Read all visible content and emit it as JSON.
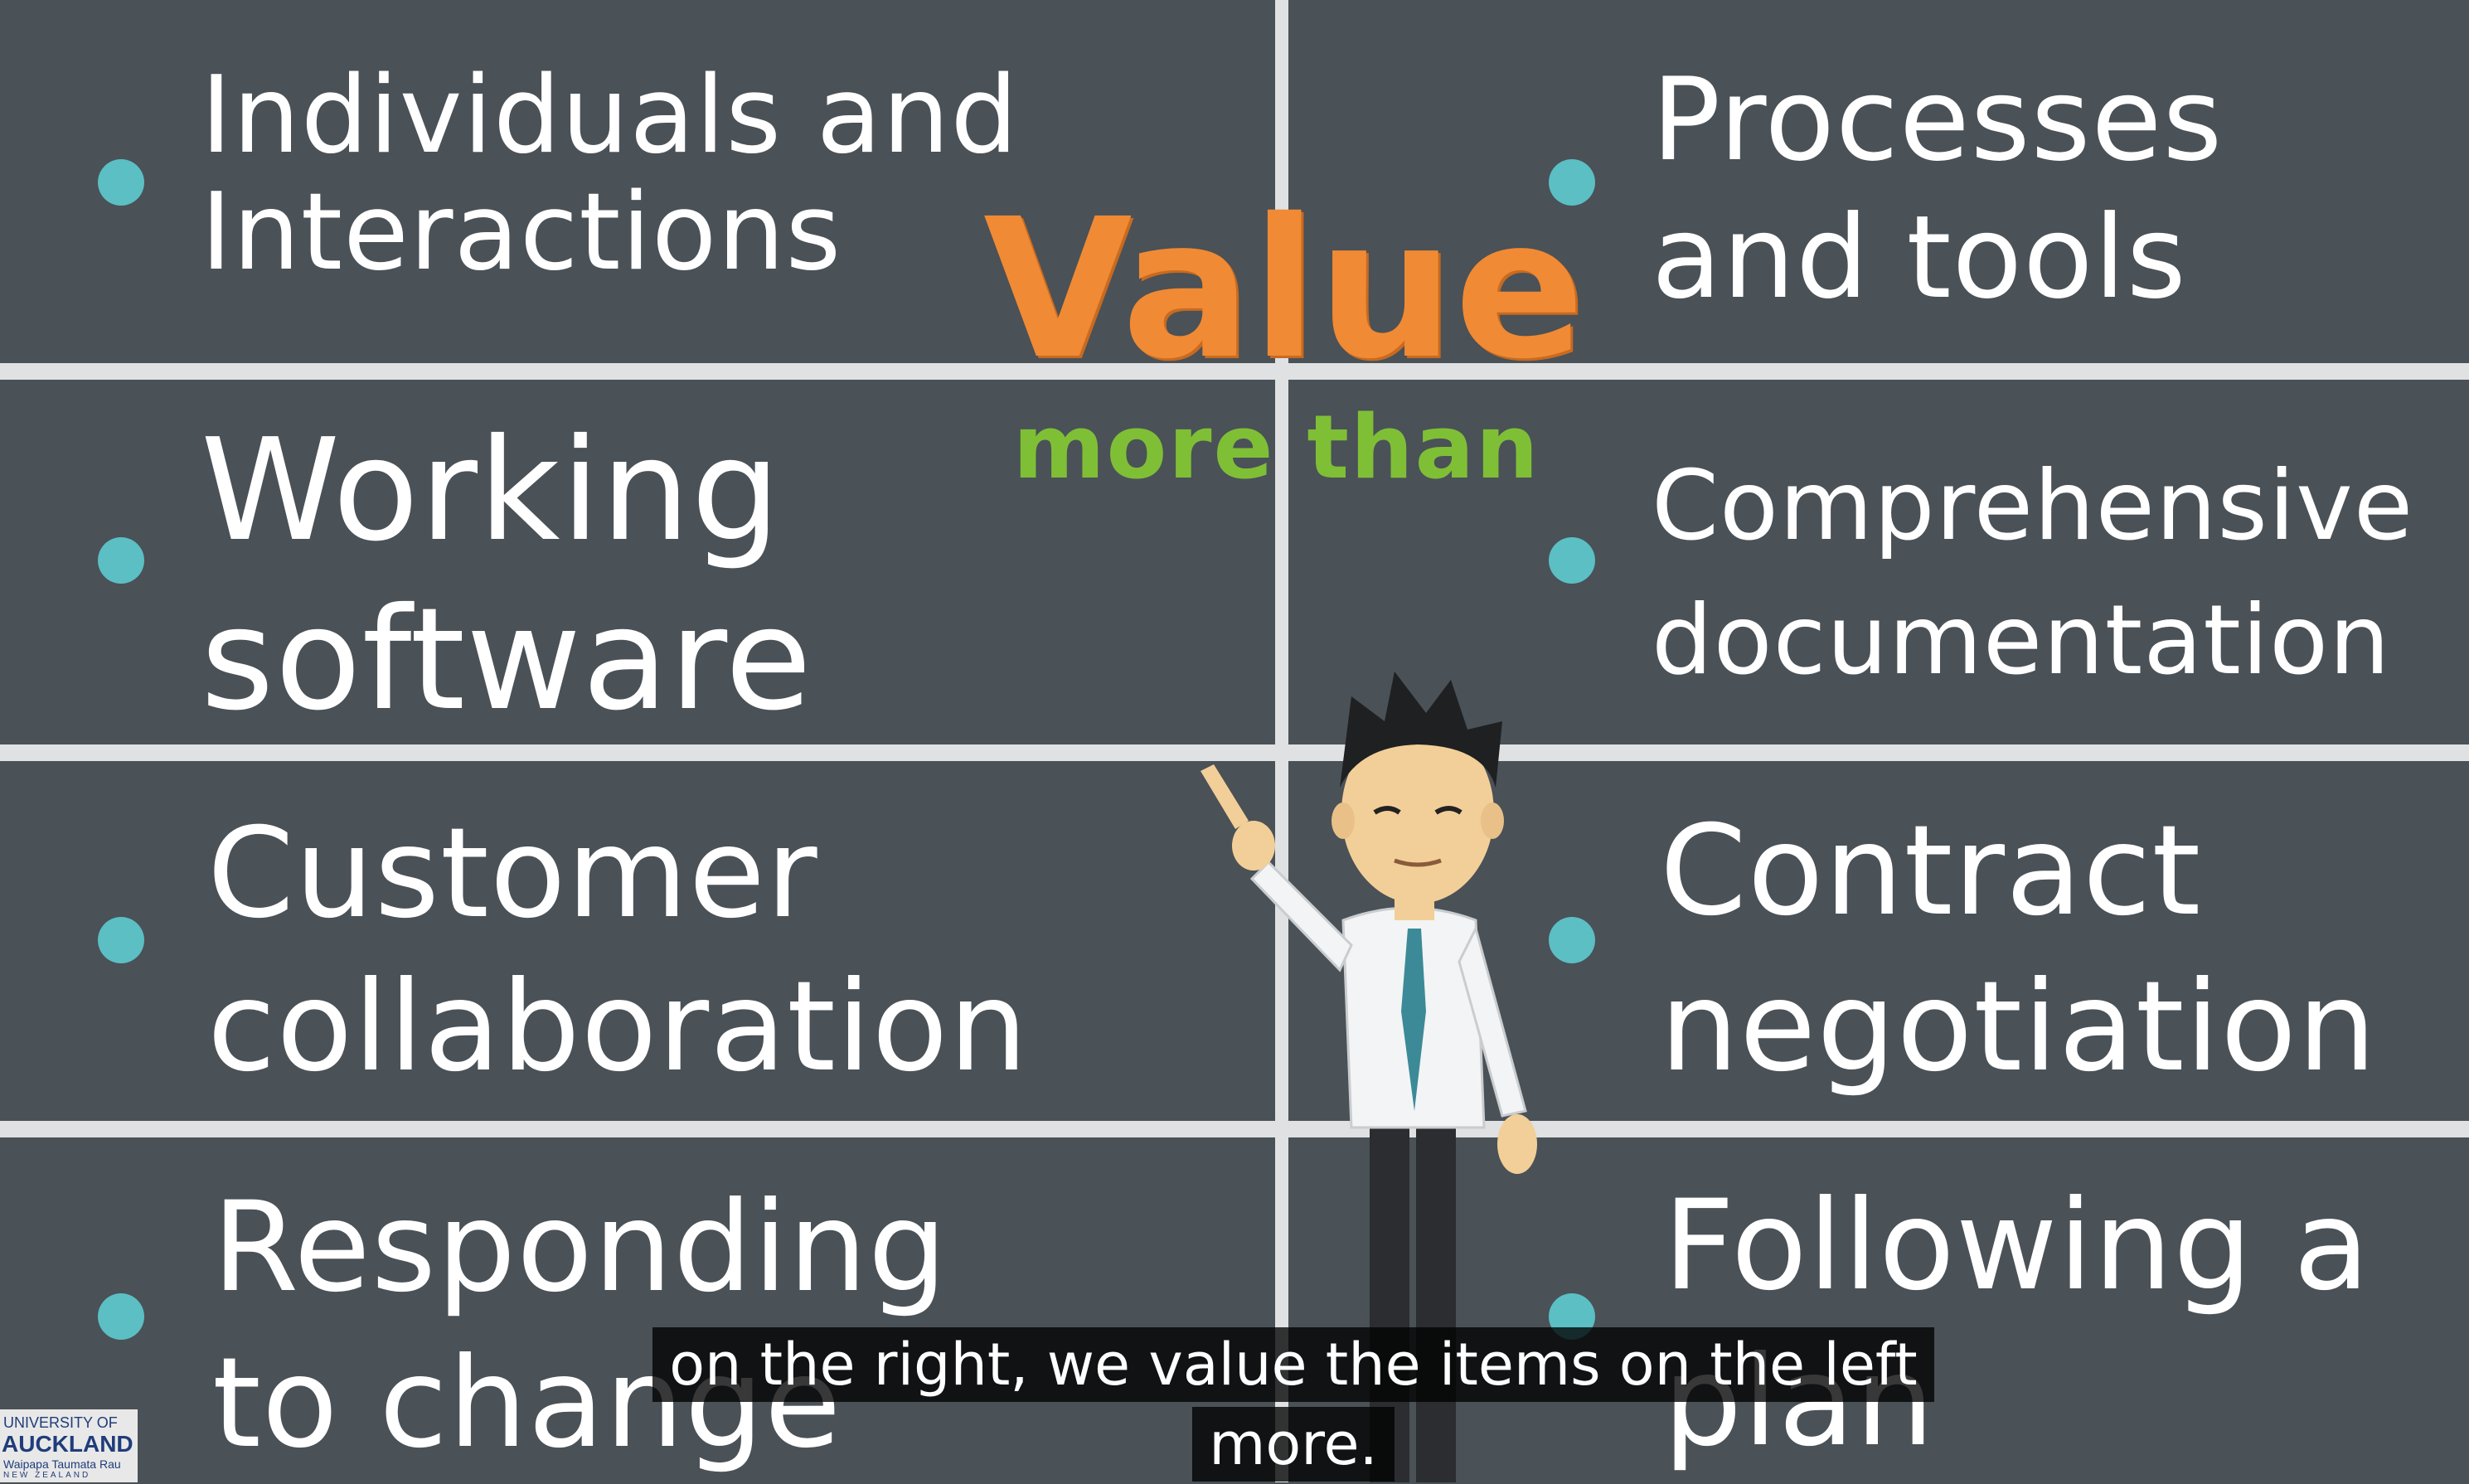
{
  "slide": {
    "heading_value": "Value",
    "heading_more_than": "more than",
    "left_items": [
      "Individuals and Interactions",
      "Working software",
      "Customer collaboration",
      "Responding to change"
    ],
    "right_items": [
      "Processes and tools",
      "Comprehensive documentation",
      "Contract negotiation",
      "Following a plan"
    ]
  },
  "subtitle": {
    "line1": "on the right, we value the items on the left",
    "line2": "more."
  },
  "logo": {
    "line1": "UNIVERSITY OF",
    "line2": "AUCKLAND",
    "line3": "Waipapa Taumata Rau",
    "line4": "NEW ZEALAND"
  },
  "icons": {
    "bullet": "bullet-dot-icon",
    "character": "businessman-pointing-icon"
  },
  "colors": {
    "panel": "#4b5359",
    "grid_lines": "#dfe1e2",
    "bullet": "#5bbfc4",
    "value_word": "#f08a34",
    "more_than": "#7fbf36"
  }
}
